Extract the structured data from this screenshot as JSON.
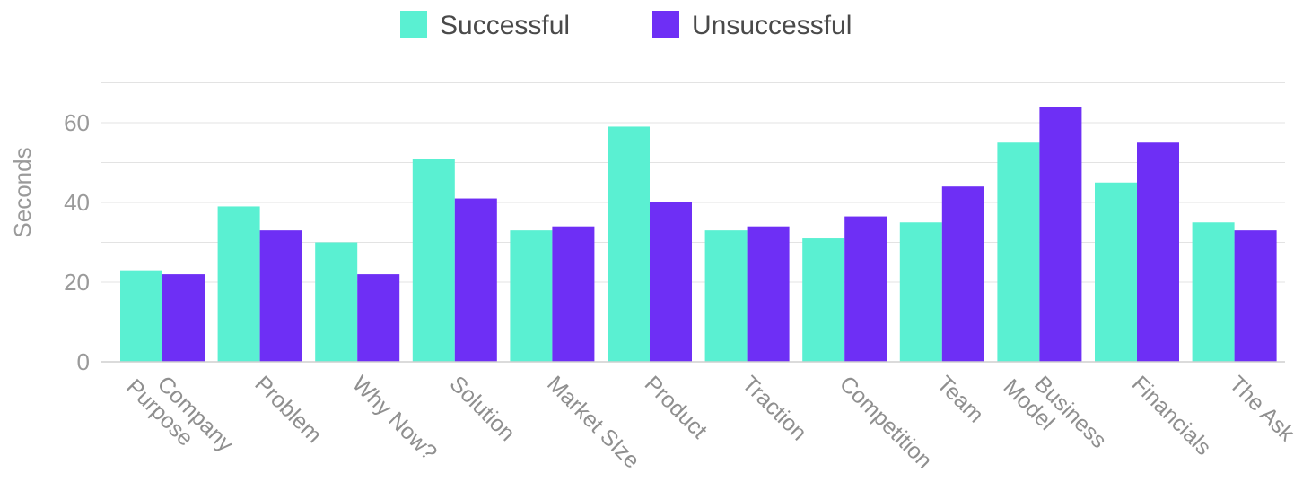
{
  "chart_data": {
    "type": "bar",
    "title": "",
    "xlabel": "",
    "ylabel": "Seconds",
    "ylim": [
      0,
      70
    ],
    "yticks": [
      0,
      20,
      40,
      60
    ],
    "grid": true,
    "legend_position": "top-center",
    "categories": [
      "Company Purpose",
      "Problem",
      "Why Now?",
      "Solution",
      "Market SIze",
      "Product",
      "Traction",
      "Competition",
      "Team",
      "Business Model",
      "Financials",
      "The Ask"
    ],
    "category_lines": [
      [
        "Company",
        "Purpose"
      ],
      [
        "Problem"
      ],
      [
        "Why Now?"
      ],
      [
        "Solution"
      ],
      [
        "Market SIze"
      ],
      [
        "Product"
      ],
      [
        "Traction"
      ],
      [
        "Competition"
      ],
      [
        "Team"
      ],
      [
        "Business",
        "Model"
      ],
      [
        "Financials"
      ],
      [
        "The Ask"
      ]
    ],
    "series": [
      {
        "name": "Successful",
        "color": "#5af0d2",
        "values": [
          23,
          39,
          30,
          51,
          33,
          59,
          33,
          31,
          35,
          55,
          45,
          35
        ]
      },
      {
        "name": "Unsuccessful",
        "color": "#6e2ff5",
        "values": [
          22,
          33,
          22,
          41,
          34,
          40,
          34,
          36.5,
          44,
          64,
          55,
          33
        ]
      }
    ]
  }
}
